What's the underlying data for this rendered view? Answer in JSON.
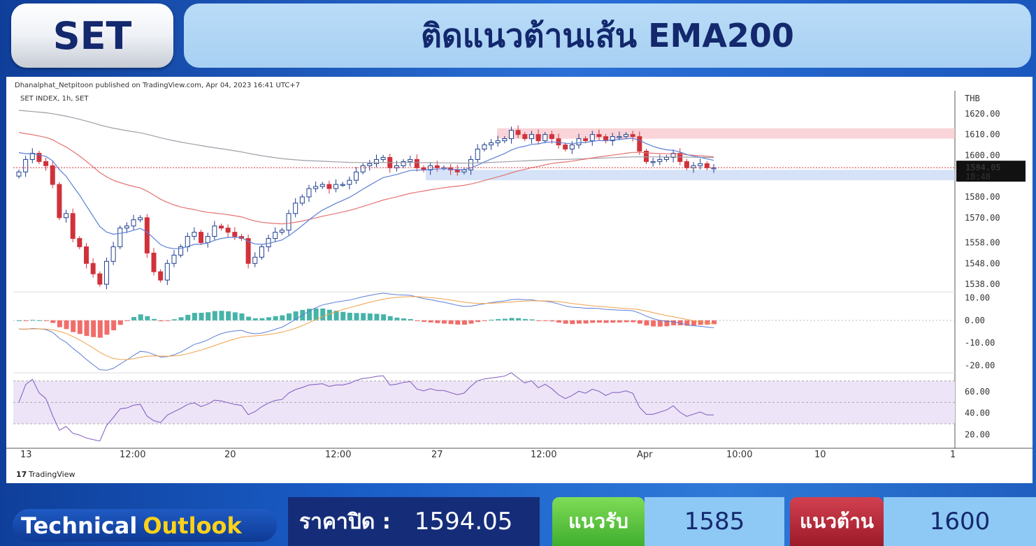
{
  "header": {
    "badge": "SET",
    "title": "ติดแนวต้านเส้น EMA200"
  },
  "chart_panel": {
    "attribution": "Dhanalphat_Netpitoon published on TradingView.com, Apr 04, 2023 16:41 UTC+7",
    "symbol": "SET INDEX, 1h, SET",
    "branding": "TradingView"
  },
  "chart_data": [
    {
      "type": "candlestick",
      "title": "SET INDEX, 1h, SET",
      "ylabel": "THB",
      "ylim": [
        1535,
        1625
      ],
      "y_ticks": [
        "1620.00",
        "1610.00",
        "1600.00",
        "1580.00",
        "1570.00",
        "1558.00",
        "1548.00",
        "1538.00"
      ],
      "y_tick_values": [
        1620,
        1610,
        1600,
        1580,
        1570,
        1558,
        1548,
        1538
      ],
      "x_ticks": [
        "13",
        "12:00",
        "20",
        "12:00",
        "27",
        "12:00",
        "Apr",
        "10:00",
        "10",
        "1"
      ],
      "last_price": "1594.05",
      "countdown": "18:48",
      "colors": {
        "up": "#ffffff",
        "up_outline": "#1f3f8f",
        "down": "#d0323b",
        "ema_long": "#9e9ea8",
        "ema_mid": "#e57373",
        "ema_short": "#5b7fd6",
        "resistance_zone": "#f7c5cb",
        "support_zone": "#c7d8f4"
      },
      "zones": [
        {
          "name": "resistance",
          "from": 1608,
          "to": 1613
        },
        {
          "name": "support",
          "from": 1588,
          "to": 1593
        }
      ],
      "closes": [
        1592,
        1598,
        1601,
        1597,
        1595,
        1586,
        1570,
        1572,
        1560,
        1556,
        1548,
        1543,
        1538,
        1549,
        1556,
        1565,
        1566,
        1569,
        1570,
        1553,
        1544,
        1540,
        1548,
        1552,
        1556,
        1561,
        1563,
        1558,
        1561,
        1566,
        1565,
        1563,
        1561,
        1560,
        1548,
        1551,
        1556,
        1560,
        1563,
        1564,
        1572,
        1577,
        1580,
        1584,
        1585,
        1586,
        1584,
        1586,
        1586,
        1588,
        1592,
        1595,
        1596,
        1598,
        1599,
        1594,
        1595,
        1597,
        1598,
        1594,
        1593,
        1595,
        1594,
        1594,
        1593,
        1592,
        1593,
        1598,
        1603,
        1605,
        1606,
        1607,
        1608,
        1612,
        1610,
        1608,
        1610,
        1607,
        1610,
        1608,
        1605,
        1603,
        1605,
        1608,
        1607,
        1610,
        1609,
        1607,
        1609,
        1609,
        1610,
        1609,
        1602,
        1597,
        1597,
        1598,
        1599,
        1601,
        1597,
        1594,
        1595,
        1596,
        1594,
        1594
      ]
    },
    {
      "type": "macd",
      "ylim": [
        -22,
        12
      ],
      "y_ticks": [
        "10.00",
        "0.00",
        "-10.00",
        "-20.00"
      ],
      "y_tick_values": [
        10,
        0,
        -10,
        -20
      ]
    },
    {
      "type": "rsi",
      "ylim": [
        15,
        75
      ],
      "y_ticks": [
        "60.00",
        "40.00",
        "20.00"
      ],
      "y_tick_values": [
        60,
        40,
        20
      ],
      "bands": [
        30,
        50,
        70
      ]
    }
  ],
  "footer": {
    "tech_word": "Technical",
    "outlook_word": "Outlook",
    "close_label": "ราคาปิด :",
    "close_value": "1594.05",
    "support_label": "แนวรับ",
    "support_value": "1585",
    "resistance_label": "แนวต้าน",
    "resistance_value": "1600"
  }
}
